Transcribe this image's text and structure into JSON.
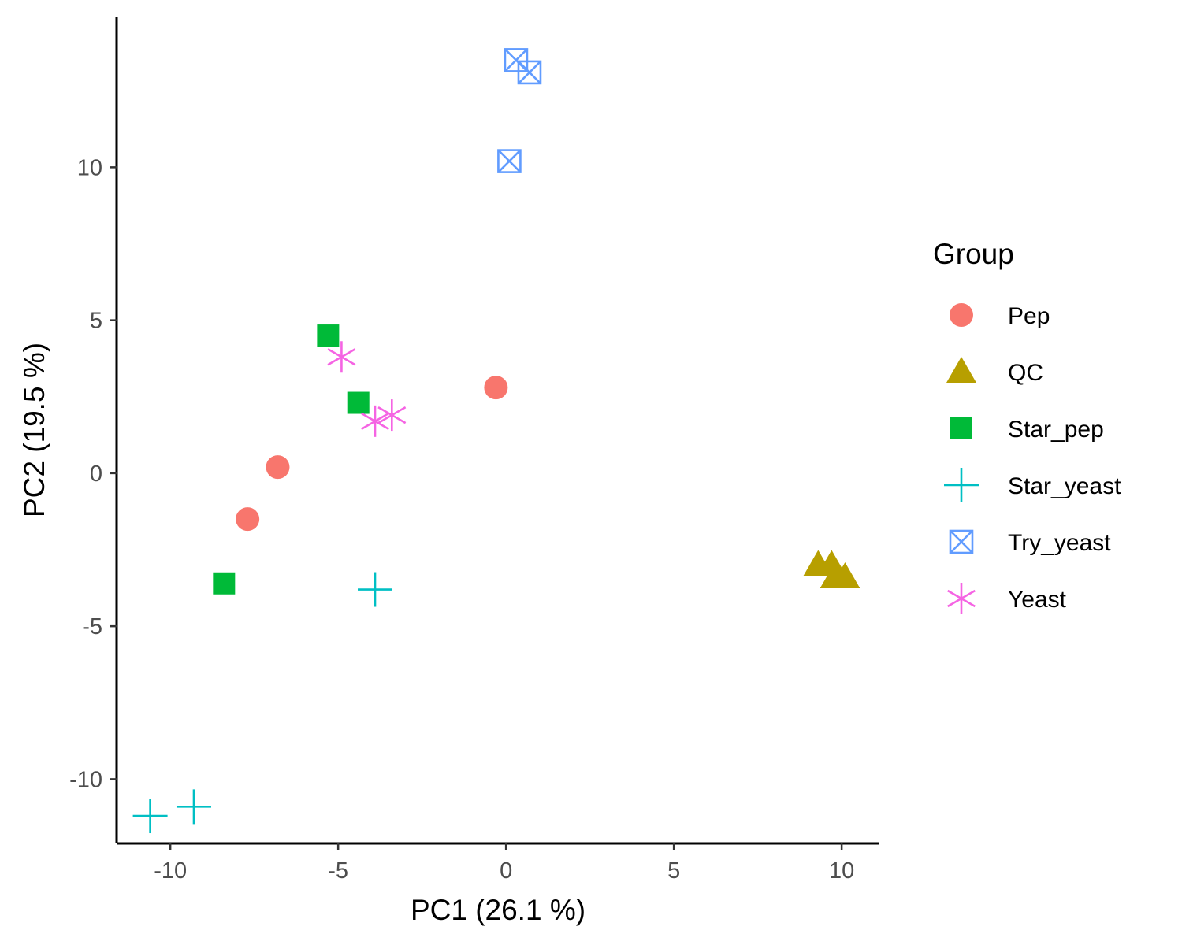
{
  "chart_data": {
    "type": "scatter",
    "xlabel": "PC1 (26.1 %)",
    "ylabel": "PC2 (19.5 %)",
    "xlim": [
      -11.6,
      11.1
    ],
    "ylim": [
      -12.1,
      14.9
    ],
    "x_ticks": [
      -10,
      -5,
      0,
      5,
      10
    ],
    "y_ticks": [
      -10,
      -5,
      0,
      5,
      10
    ],
    "x_tick_labels": [
      "-10",
      "-5",
      "0",
      "5",
      "10"
    ],
    "y_tick_labels": [
      "-10",
      "-5",
      "0",
      "5",
      "10"
    ],
    "grid": false,
    "legend": {
      "title": "Group",
      "position": "right"
    },
    "series": [
      {
        "name": "Pep",
        "shape": "circle",
        "color": "#F8766D",
        "points": [
          [
            -7.7,
            -1.5
          ],
          [
            -6.8,
            0.2
          ],
          [
            -0.3,
            2.8
          ]
        ]
      },
      {
        "name": "QC",
        "shape": "triangle",
        "color": "#B79F00",
        "points": [
          [
            9.3,
            -3.0
          ],
          [
            9.7,
            -3.0
          ],
          [
            9.8,
            -3.4
          ],
          [
            10.1,
            -3.4
          ]
        ]
      },
      {
        "name": "Star_pep",
        "shape": "square",
        "color": "#00BA38",
        "points": [
          [
            -8.4,
            -3.6
          ],
          [
            -5.3,
            4.5
          ],
          [
            -4.4,
            2.3
          ]
        ]
      },
      {
        "name": "Star_yeast",
        "shape": "plus",
        "color": "#00BFC4",
        "points": [
          [
            -10.6,
            -11.2
          ],
          [
            -9.3,
            -10.9
          ],
          [
            -3.9,
            -3.8
          ]
        ]
      },
      {
        "name": "Try_yeast",
        "shape": "square-cross",
        "color": "#619CFF",
        "points": [
          [
            0.3,
            13.5
          ],
          [
            0.7,
            13.1
          ],
          [
            0.1,
            10.2
          ]
        ]
      },
      {
        "name": "Yeast",
        "shape": "asterisk",
        "color": "#F564E3",
        "points": [
          [
            -4.9,
            3.8
          ],
          [
            -3.9,
            1.7
          ],
          [
            -3.4,
            1.9
          ]
        ]
      }
    ]
  }
}
